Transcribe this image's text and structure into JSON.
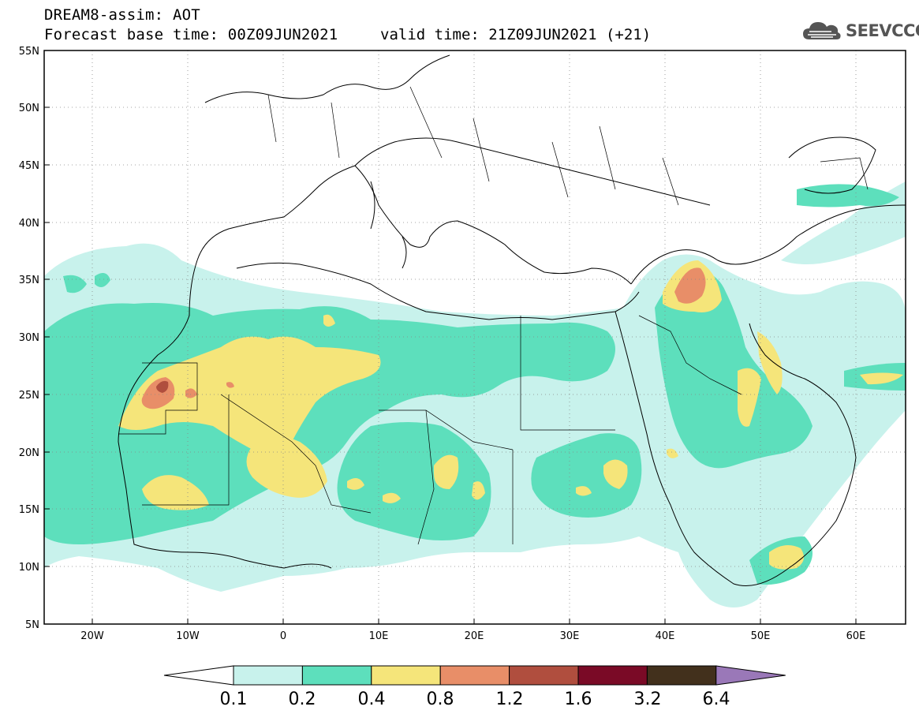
{
  "title": {
    "line1": "DREAM8-assim: AOT",
    "line2": "Forecast base time: 00Z09JUN2021",
    "valid": "valid time: 21Z09JUN2021 (+21)"
  },
  "logo": {
    "text": "SEEVCCC",
    "icon": "cloud-icon"
  },
  "map": {
    "lon_range": [
      -25,
      65
    ],
    "lat_range": [
      5,
      55
    ],
    "x_ticks": [
      "20W",
      "10W",
      "0",
      "10E",
      "20E",
      "30E",
      "40E",
      "50E",
      "60E"
    ],
    "y_ticks": [
      "55N",
      "50N",
      "45N",
      "40N",
      "35N",
      "30N",
      "25N",
      "20N",
      "15N",
      "10N",
      "5N"
    ],
    "grid": "dotted"
  },
  "colorbar": {
    "labels": [
      "0.1",
      "0.2",
      "0.4",
      "0.8",
      "1.2",
      "1.6",
      "3.2",
      "6.4"
    ],
    "colors": [
      "#c8f2ec",
      "#5ddfbc",
      "#f5e57a",
      "#e88e68",
      "#b04e3e",
      "#7a0a26",
      "#42301c",
      "#9a78b8"
    ],
    "levels": [
      0.1,
      0.2,
      0.4,
      0.8,
      1.2,
      1.6,
      3.2,
      6.4
    ]
  }
}
